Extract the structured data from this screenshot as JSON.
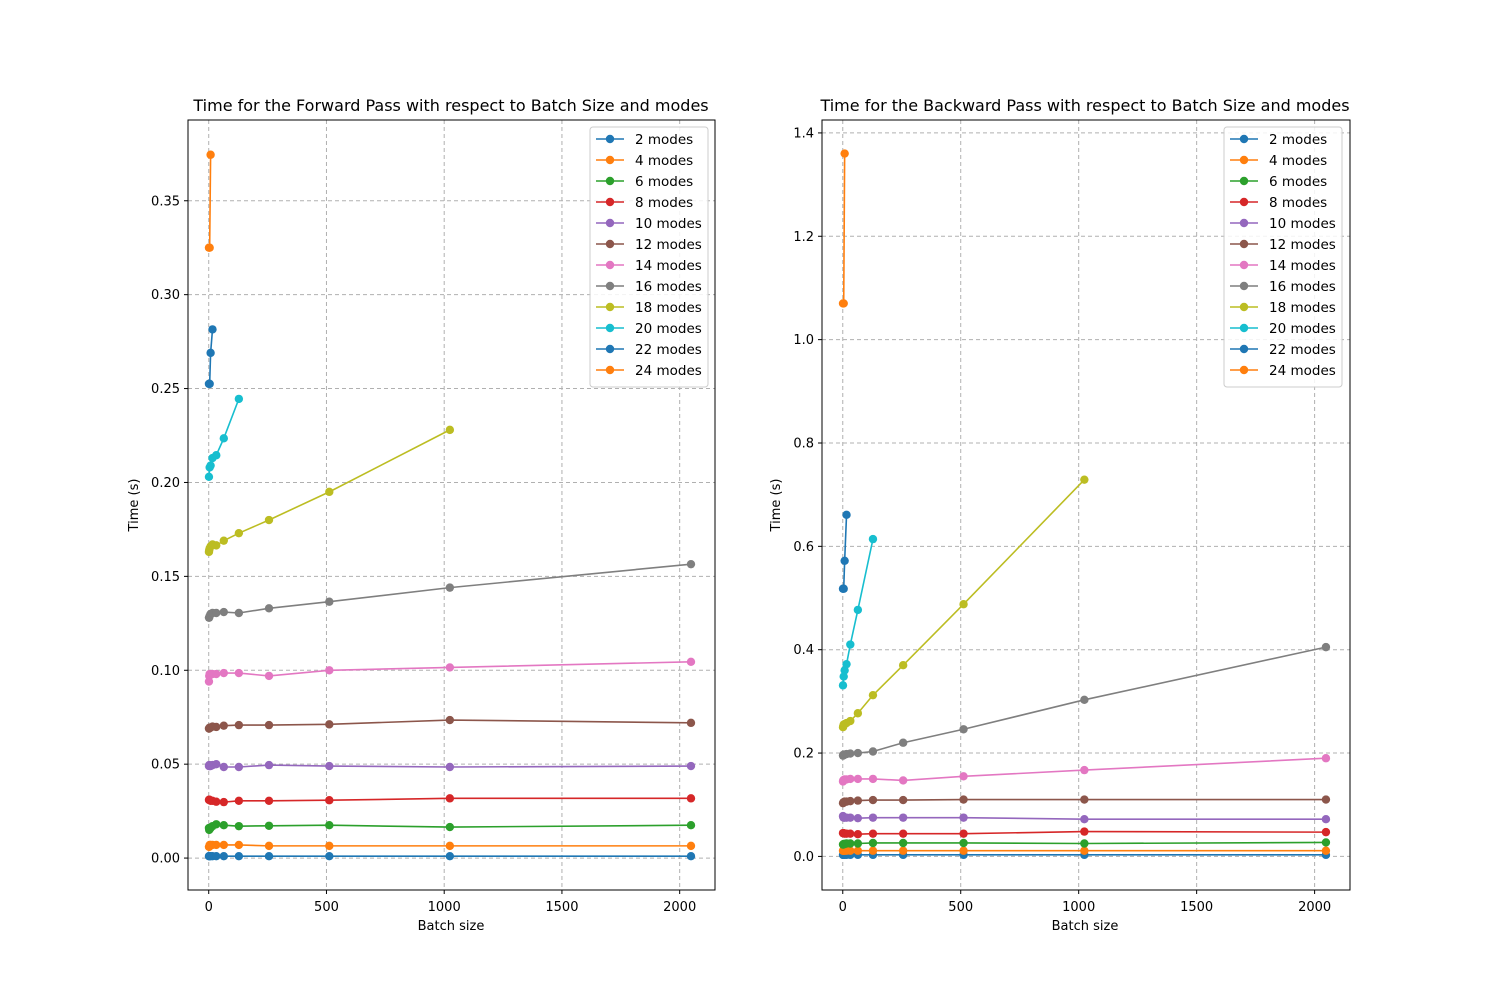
{
  "colors": [
    "#1f77b4",
    "#ff7f0e",
    "#2ca02c",
    "#d62728",
    "#9467bd",
    "#8c564b",
    "#e377c2",
    "#7f7f7f",
    "#bcbd22",
    "#17becf",
    "#1f77b4",
    "#ff7f0e"
  ],
  "chart_data": [
    {
      "type": "line",
      "title": "Time for the Forward Pass with respect to Batch Size and modes",
      "xlabel": "Batch size",
      "ylabel": "Time (s)",
      "xlim": [
        -88,
        2150
      ],
      "ylim": [
        -0.017,
        0.393
      ],
      "xticks": [
        0,
        500,
        1000,
        1500,
        2000
      ],
      "yticks": [
        0.0,
        0.05,
        0.1,
        0.15,
        0.2,
        0.25,
        0.3,
        0.35
      ],
      "ytick_labels": [
        "0.00",
        "0.05",
        "0.10",
        "0.15",
        "0.20",
        "0.25",
        "0.30",
        "0.35"
      ],
      "grid": true,
      "legend": "top-right",
      "series": [
        {
          "name": "2 modes",
          "x": [
            1,
            2,
            4,
            8,
            16,
            32,
            64,
            128,
            256,
            512,
            1024,
            2048
          ],
          "y": [
            0.001,
            0.001,
            0.001,
            0.001,
            0.001,
            0.001,
            0.001,
            0.001,
            0.001,
            0.001,
            0.001,
            0.001
          ]
        },
        {
          "name": "4 modes",
          "x": [
            1,
            2,
            4,
            8,
            16,
            32,
            64,
            128,
            256,
            512,
            1024,
            2048
          ],
          "y": [
            0.006,
            0.006,
            0.007,
            0.007,
            0.007,
            0.007,
            0.007,
            0.007,
            0.0065,
            0.0065,
            0.0065,
            0.0065
          ]
        },
        {
          "name": "6 modes",
          "x": [
            1,
            2,
            4,
            8,
            16,
            32,
            64,
            128,
            256,
            512,
            1024,
            2048
          ],
          "y": [
            0.016,
            0.015,
            0.016,
            0.016,
            0.017,
            0.018,
            0.0175,
            0.017,
            0.0172,
            0.0175,
            0.0165,
            0.0175
          ]
        },
        {
          "name": "8 modes",
          "x": [
            1,
            2,
            4,
            8,
            16,
            32,
            64,
            128,
            256,
            512,
            1024,
            2048
          ],
          "y": [
            0.031,
            0.031,
            0.031,
            0.0305,
            0.0305,
            0.03,
            0.0298,
            0.0305,
            0.0305,
            0.0308,
            0.0318,
            0.0318
          ]
        },
        {
          "name": "10 modes",
          "x": [
            1,
            2,
            4,
            8,
            16,
            32,
            64,
            128,
            256,
            512,
            1024,
            2048
          ],
          "y": [
            0.049,
            0.0495,
            0.049,
            0.049,
            0.0495,
            0.05,
            0.0485,
            0.0485,
            0.0495,
            0.049,
            0.0485,
            0.049
          ]
        },
        {
          "name": "12 modes",
          "x": [
            1,
            2,
            4,
            8,
            16,
            32,
            64,
            128,
            256,
            512,
            1024,
            2048
          ],
          "y": [
            0.069,
            0.069,
            0.0695,
            0.0695,
            0.07,
            0.0698,
            0.0705,
            0.0708,
            0.0708,
            0.0712,
            0.0735,
            0.072
          ]
        },
        {
          "name": "14 modes",
          "x": [
            1,
            2,
            4,
            8,
            16,
            32,
            64,
            128,
            256,
            512,
            1024,
            2048
          ],
          "y": [
            0.094,
            0.097,
            0.098,
            0.098,
            0.098,
            0.098,
            0.0985,
            0.0985,
            0.097,
            0.1,
            0.1015,
            0.1045
          ]
        },
        {
          "name": "16 modes",
          "x": [
            1,
            2,
            4,
            8,
            16,
            32,
            64,
            128,
            256,
            512,
            1024,
            2048
          ],
          "y": [
            0.128,
            0.128,
            0.129,
            0.13,
            0.1305,
            0.1305,
            0.131,
            0.1305,
            0.133,
            0.1365,
            0.144,
            0.1565
          ]
        },
        {
          "name": "18 modes",
          "x": [
            1,
            2,
            4,
            8,
            16,
            32,
            64,
            128,
            256,
            512,
            1024
          ],
          "y": [
            0.163,
            0.164,
            0.165,
            0.166,
            0.167,
            0.1665,
            0.169,
            0.173,
            0.18,
            0.195,
            0.228
          ]
        },
        {
          "name": "20 modes",
          "x": [
            1,
            4,
            8,
            16,
            32,
            64,
            128
          ],
          "y": [
            0.203,
            0.208,
            0.209,
            0.213,
            0.2145,
            0.2235,
            0.2445
          ]
        },
        {
          "name": "22 modes",
          "x": [
            1,
            4,
            8,
            16
          ],
          "y": [
            0.2525,
            0.2525,
            0.269,
            0.2815
          ]
        },
        {
          "name": "24 modes",
          "x": [
            1,
            4,
            8
          ],
          "y": [
            0.325,
            0.325,
            0.3745
          ]
        }
      ]
    },
    {
      "type": "line",
      "title": "Time for the Backward Pass with respect to Batch Size and modes",
      "xlabel": "Batch size",
      "ylabel": "Time (s)",
      "xlim": [
        -88,
        2150
      ],
      "ylim": [
        -0.065,
        1.425
      ],
      "xticks": [
        0,
        500,
        1000,
        1500,
        2000
      ],
      "yticks": [
        0.0,
        0.2,
        0.4,
        0.6,
        0.8,
        1.0,
        1.2,
        1.4
      ],
      "ytick_labels": [
        "0.0",
        "0.2",
        "0.4",
        "0.6",
        "0.8",
        "1.0",
        "1.2",
        "1.4"
      ],
      "grid": true,
      "legend": "top-right",
      "series": [
        {
          "name": "2 modes",
          "x": [
            1,
            2,
            4,
            8,
            16,
            32,
            64,
            128,
            256,
            512,
            1024,
            2048
          ],
          "y": [
            0.003,
            0.003,
            0.003,
            0.003,
            0.003,
            0.003,
            0.003,
            0.003,
            0.003,
            0.003,
            0.003,
            0.003
          ]
        },
        {
          "name": "4 modes",
          "x": [
            1,
            2,
            4,
            8,
            16,
            32,
            64,
            128,
            256,
            512,
            1024,
            2048
          ],
          "y": [
            0.011,
            0.011,
            0.011,
            0.011,
            0.011,
            0.011,
            0.011,
            0.011,
            0.011,
            0.011,
            0.011,
            0.011
          ]
        },
        {
          "name": "6 modes",
          "x": [
            1,
            2,
            4,
            8,
            16,
            32,
            64,
            128,
            256,
            512,
            1024,
            2048
          ],
          "y": [
            0.023,
            0.023,
            0.024,
            0.024,
            0.025,
            0.025,
            0.025,
            0.026,
            0.026,
            0.026,
            0.025,
            0.027
          ]
        },
        {
          "name": "8 modes",
          "x": [
            1,
            2,
            4,
            8,
            16,
            32,
            64,
            128,
            256,
            512,
            1024,
            2048
          ],
          "y": [
            0.045,
            0.045,
            0.045,
            0.044,
            0.044,
            0.044,
            0.043,
            0.044,
            0.044,
            0.044,
            0.048,
            0.047
          ]
        },
        {
          "name": "10 modes",
          "x": [
            1,
            2,
            4,
            8,
            16,
            32,
            64,
            128,
            256,
            512,
            1024,
            2048
          ],
          "y": [
            0.078,
            0.076,
            0.075,
            0.075,
            0.075,
            0.075,
            0.074,
            0.075,
            0.075,
            0.075,
            0.072,
            0.072
          ]
        },
        {
          "name": "12 modes",
          "x": [
            1,
            2,
            4,
            8,
            16,
            32,
            64,
            128,
            256,
            512,
            1024,
            2048
          ],
          "y": [
            0.103,
            0.104,
            0.105,
            0.106,
            0.106,
            0.107,
            0.108,
            0.109,
            0.109,
            0.11,
            0.11,
            0.11
          ]
        },
        {
          "name": "14 modes",
          "x": [
            1,
            2,
            4,
            8,
            16,
            32,
            64,
            128,
            256,
            512,
            1024,
            2048
          ],
          "y": [
            0.145,
            0.147,
            0.148,
            0.149,
            0.149,
            0.15,
            0.15,
            0.15,
            0.147,
            0.155,
            0.167,
            0.19
          ]
        },
        {
          "name": "16 modes",
          "x": [
            1,
            2,
            4,
            8,
            16,
            32,
            64,
            128,
            256,
            512,
            1024,
            2048
          ],
          "y": [
            0.195,
            0.196,
            0.197,
            0.197,
            0.198,
            0.199,
            0.2,
            0.203,
            0.22,
            0.246,
            0.303,
            0.405
          ]
        },
        {
          "name": "18 modes",
          "x": [
            1,
            2,
            4,
            8,
            16,
            32,
            64,
            128,
            256,
            512,
            1024
          ],
          "y": [
            0.25,
            0.252,
            0.255,
            0.256,
            0.258,
            0.262,
            0.277,
            0.312,
            0.37,
            0.488,
            0.729
          ]
        },
        {
          "name": "20 modes",
          "x": [
            1,
            4,
            8,
            16,
            32,
            64,
            128
          ],
          "y": [
            0.331,
            0.348,
            0.36,
            0.372,
            0.41,
            0.477,
            0.614
          ]
        },
        {
          "name": "22 modes",
          "x": [
            1,
            4,
            8,
            16
          ],
          "y": [
            0.518,
            0.518,
            0.572,
            0.661
          ]
        },
        {
          "name": "24 modes",
          "x": [
            1,
            4,
            8
          ],
          "y": [
            1.07,
            1.07,
            1.36
          ]
        }
      ]
    }
  ]
}
